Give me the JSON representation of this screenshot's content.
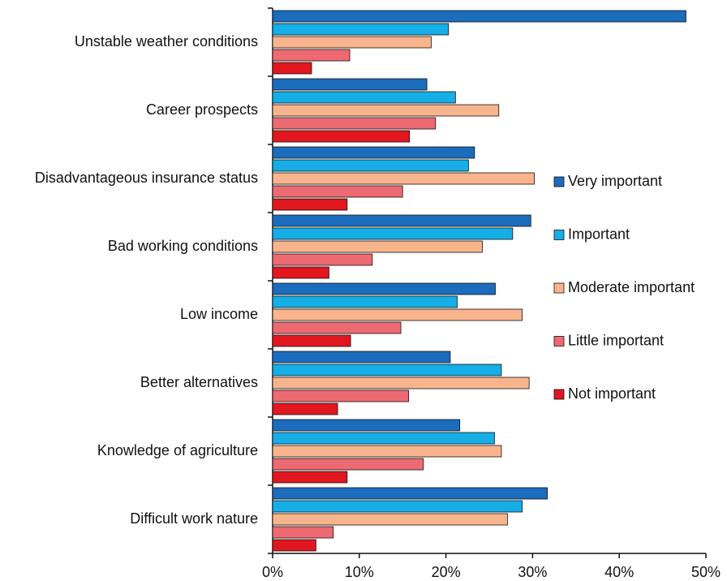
{
  "chart_data": {
    "type": "hbar",
    "categories": [
      "Unstable weather conditions",
      "Career prospects",
      "Disadvantageous insurance status",
      "Bad working conditions",
      "Low income",
      "Better alternatives",
      "Knowledge of agriculture",
      "Difficult work nature"
    ],
    "series": [
      {
        "name": "Very important",
        "color": "#1c6cbd",
        "values": [
          47.7,
          17.8,
          23.3,
          29.8,
          25.7,
          20.5,
          21.6,
          31.7
        ]
      },
      {
        "name": "Important",
        "color": "#16aee6",
        "values": [
          20.3,
          21.1,
          22.6,
          27.7,
          21.3,
          26.4,
          25.6,
          28.8
        ]
      },
      {
        "name": "Moderate important",
        "color": "#f8b48c",
        "values": [
          18.3,
          26.1,
          30.2,
          24.2,
          28.8,
          29.6,
          26.4,
          27.1
        ]
      },
      {
        "name": "Little important",
        "color": "#ee6a72",
        "values": [
          8.9,
          18.8,
          15.0,
          11.5,
          14.8,
          15.7,
          17.4,
          7.0
        ]
      },
      {
        "name": "Not important",
        "color": "#e2161e",
        "values": [
          4.5,
          15.8,
          8.6,
          6.5,
          9.0,
          7.5,
          8.6,
          5.0
        ]
      }
    ],
    "xlim": [
      0,
      50
    ],
    "xticks": [
      {
        "value": 0,
        "label": "0%"
      },
      {
        "value": 10,
        "label": "10%"
      },
      {
        "value": 20,
        "label": "20%"
      },
      {
        "value": 30,
        "label": "30%"
      },
      {
        "value": 40,
        "label": "40%"
      },
      {
        "value": 50,
        "label": "50%"
      }
    ],
    "legend": "right"
  }
}
